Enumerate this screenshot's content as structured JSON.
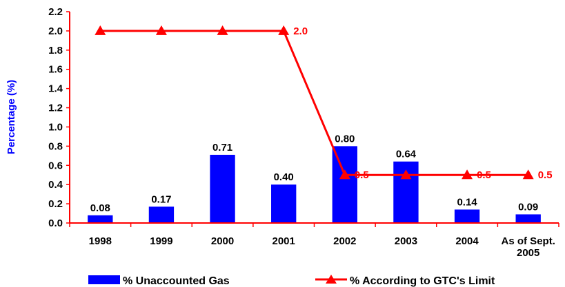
{
  "chart_data": {
    "type": "bar",
    "ylabel": "Percentage (%)",
    "xlabel": "",
    "title": "",
    "ylim": [
      0,
      2.2
    ],
    "ytick_step": 0.2,
    "ytick_labels": [
      "0.0",
      "0.2",
      "0.4",
      "0.6",
      "0.8",
      "1.0",
      "1.2",
      "1.4",
      "1.6",
      "1.8",
      "2.0",
      "2.2"
    ],
    "categories": [
      "1998",
      "1999",
      "2000",
      "2001",
      "2002",
      "2003",
      "2004",
      "As of Sept. 2005"
    ],
    "category_lines": [
      [
        "1998"
      ],
      [
        "1999"
      ],
      [
        "2000"
      ],
      [
        "2001"
      ],
      [
        "2002"
      ],
      [
        "2003"
      ],
      [
        "2004"
      ],
      [
        "As of Sept.",
        "2005"
      ]
    ],
    "series": [
      {
        "name": "% Unaccounted Gas",
        "type": "bar",
        "color": "#0000ff",
        "values": [
          0.08,
          0.17,
          0.71,
          0.4,
          0.8,
          0.64,
          0.14,
          0.09
        ],
        "labels": [
          "0.08",
          "0.17",
          "0.71",
          "0.40",
          "0.80",
          "0.64",
          "0.14",
          "0.09"
        ]
      },
      {
        "name": "% According to GTC's Limit",
        "type": "line",
        "marker": "triangle",
        "color": "#ff0000",
        "values": [
          2.0,
          2.0,
          2.0,
          2.0,
          0.5,
          0.5,
          0.5,
          0.5
        ],
        "labels": [
          "",
          "",
          "",
          "2.0",
          "0.5",
          "",
          "0.5",
          "0.5"
        ]
      }
    ],
    "grid": false,
    "legend_position": "bottom"
  }
}
